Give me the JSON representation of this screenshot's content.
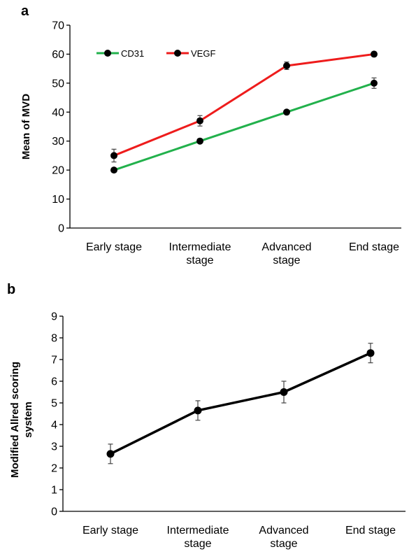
{
  "chart_data": [
    {
      "panel": "a",
      "type": "line",
      "ylabel": "Mean of MVD",
      "xlabel": "",
      "ylim": [
        0,
        70
      ],
      "yticks": [
        0,
        10,
        20,
        30,
        40,
        50,
        60,
        70
      ],
      "categories": [
        [
          "Early stage"
        ],
        [
          "Intermediate",
          "stage"
        ],
        [
          "Advanced",
          "stage"
        ],
        [
          "End stage"
        ]
      ],
      "legend_position": "top-left",
      "grid": false,
      "series": [
        {
          "name": "CD31",
          "color": "#22b14c",
          "values": [
            20,
            30,
            40,
            50
          ],
          "errors": [
            0.5,
            0.5,
            0.5,
            1.8
          ]
        },
        {
          "name": "VEGF",
          "color": "#ee1c1c",
          "values": [
            25,
            37,
            56,
            60
          ],
          "errors": [
            2.2,
            1.8,
            1.3,
            0.8
          ]
        }
      ]
    },
    {
      "panel": "b",
      "type": "line",
      "ylabel": [
        "Modified Allred scoring",
        "system"
      ],
      "xlabel": "",
      "ylim": [
        0,
        9
      ],
      "yticks": [
        0,
        1,
        2,
        3,
        4,
        5,
        6,
        7,
        8,
        9
      ],
      "categories": [
        [
          "Early stage"
        ],
        [
          "Intermediate",
          "stage"
        ],
        [
          "Advanced",
          "stage"
        ],
        [
          "End stage"
        ]
      ],
      "grid": false,
      "series": [
        {
          "color": "#000000",
          "values": [
            2.65,
            4.65,
            5.5,
            7.3
          ],
          "errors": [
            0.45,
            0.45,
            0.5,
            0.45
          ]
        }
      ]
    }
  ]
}
